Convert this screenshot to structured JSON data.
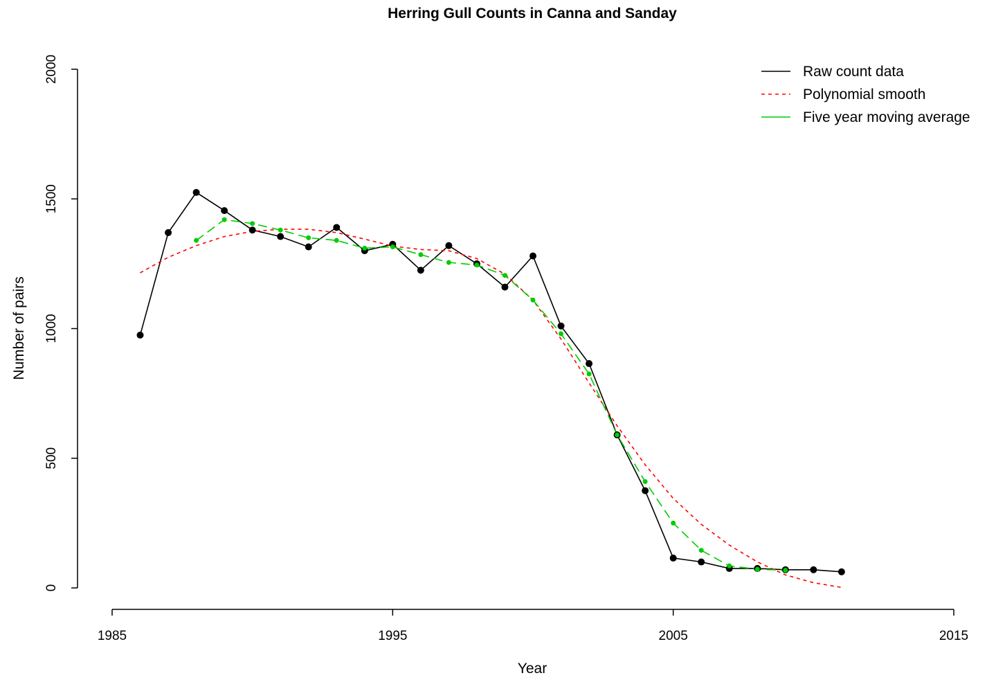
{
  "chart_data": {
    "type": "line",
    "title": "Herring Gull Counts in Canna and Sanday",
    "xlabel": "Year",
    "ylabel": "Number of pairs",
    "xlim": [
      1985,
      2015
    ],
    "ylim": [
      0,
      2000
    ],
    "x_ticks": [
      "1985",
      "1995",
      "2005",
      "2015"
    ],
    "y_ticks": [
      "0",
      "500",
      "1000",
      "1500",
      "2000"
    ],
    "legend_position": "top-right",
    "grid": false,
    "series": [
      {
        "name": "Raw count data",
        "color": "#000000",
        "style": "solid",
        "x": [
          1986,
          1987,
          1988,
          1989,
          1990,
          1991,
          1992,
          1993,
          1994,
          1995,
          1996,
          1997,
          1998,
          1999,
          2000,
          2001,
          2002,
          2003,
          2004,
          2005,
          2006,
          2007,
          2008,
          2009,
          2010,
          2011
        ],
        "values": [
          975,
          1370,
          1525,
          1455,
          1380,
          1355,
          1315,
          1390,
          1300,
          1325,
          1225,
          1320,
          1250,
          1160,
          1280,
          1010,
          865,
          590,
          375,
          115,
          100,
          75,
          75,
          70,
          70,
          62
        ]
      },
      {
        "name": "Polynomial smooth",
        "color": "#ff0000",
        "style": "dashed",
        "x": [
          1986,
          1987,
          1988,
          1989,
          1990,
          1991,
          1992,
          1993,
          1994,
          1995,
          1996,
          1997,
          1998,
          1999,
          2000,
          2001,
          2002,
          2003,
          2004,
          2005,
          2006,
          2007,
          2008,
          2009,
          2010,
          2011
        ],
        "values": [
          1215,
          1275,
          1320,
          1355,
          1375,
          1383,
          1383,
          1370,
          1345,
          1318,
          1305,
          1300,
          1270,
          1210,
          1110,
          960,
          790,
          625,
          475,
          345,
          245,
          165,
          100,
          50,
          20,
          2
        ]
      },
      {
        "name": "Five year moving average",
        "color": "#00cc00",
        "style": "longdash",
        "x": [
          1988,
          1989,
          1990,
          1991,
          1992,
          1993,
          1994,
          1995,
          1996,
          1997,
          1998,
          1999,
          2000,
          2001,
          2002,
          2003,
          2004,
          2005,
          2006,
          2007,
          2008,
          2009
        ],
        "values": [
          1340,
          1420,
          1405,
          1380,
          1350,
          1340,
          1310,
          1315,
          1285,
          1255,
          1245,
          1205,
          1110,
          980,
          825,
          590,
          410,
          250,
          145,
          85,
          72,
          68
        ]
      }
    ]
  }
}
